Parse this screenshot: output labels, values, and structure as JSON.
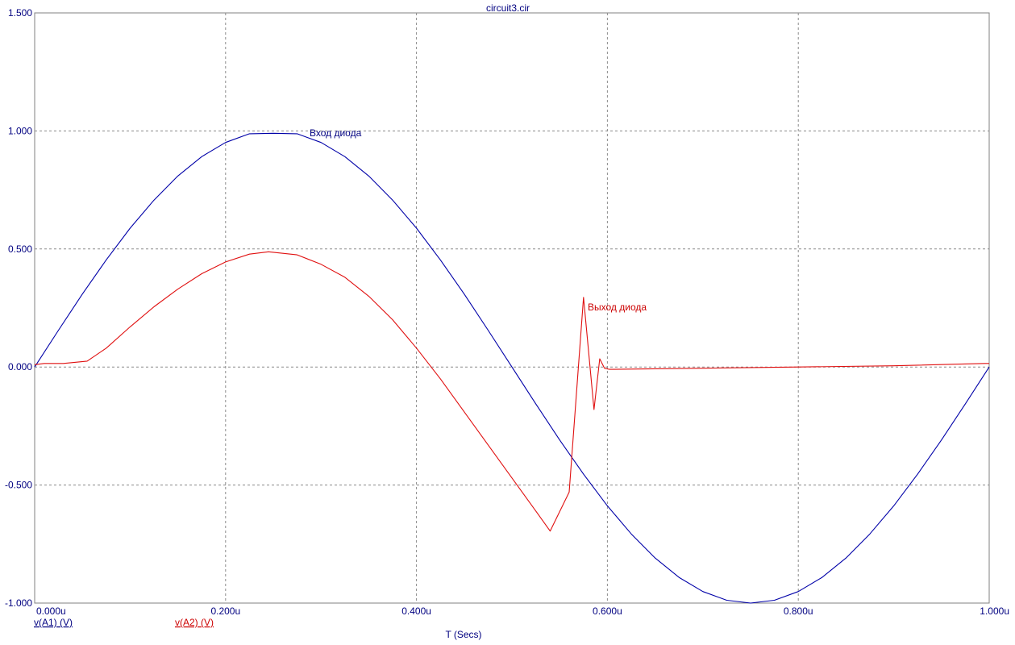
{
  "chart_data": {
    "type": "line",
    "title": "circuit3.cir",
    "xlabel": "T (Secs)",
    "ylabel": "",
    "xlim": [
      0,
      1.0
    ],
    "ylim": [
      -1.0,
      1.5
    ],
    "grid": true,
    "x_ticks": [
      {
        "value": 0.0,
        "label": "0.000u"
      },
      {
        "value": 0.2,
        "label": "0.200u"
      },
      {
        "value": 0.4,
        "label": "0.400u"
      },
      {
        "value": 0.6,
        "label": "0.600u"
      },
      {
        "value": 0.8,
        "label": "0.800u"
      },
      {
        "value": 1.0,
        "label": "1.000u"
      }
    ],
    "y_ticks": [
      {
        "value": -1.0,
        "label": "-1.000"
      },
      {
        "value": -0.5,
        "label": "-0.500"
      },
      {
        "value": 0.0,
        "label": "0.000"
      },
      {
        "value": 0.5,
        "label": "0.500"
      },
      {
        "value": 1.0,
        "label": "1.000"
      },
      {
        "value": 1.5,
        "label": "1.500"
      }
    ],
    "series": [
      {
        "name": "v(A1) (V)",
        "color": "#0000a8",
        "annotation": "Вход диода",
        "x": [
          0.0,
          0.025,
          0.05,
          0.075,
          0.1,
          0.125,
          0.15,
          0.175,
          0.2,
          0.225,
          0.25,
          0.275,
          0.3,
          0.325,
          0.35,
          0.375,
          0.4,
          0.425,
          0.45,
          0.475,
          0.5,
          0.525,
          0.55,
          0.575,
          0.6,
          0.625,
          0.65,
          0.675,
          0.7,
          0.725,
          0.75,
          0.775,
          0.8,
          0.825,
          0.85,
          0.875,
          0.9,
          0.925,
          0.95,
          0.975,
          1.0
        ],
        "y": [
          0.0,
          0.156,
          0.309,
          0.454,
          0.588,
          0.707,
          0.809,
          0.891,
          0.951,
          0.988,
          0.99,
          0.988,
          0.951,
          0.891,
          0.809,
          0.707,
          0.588,
          0.454,
          0.309,
          0.156,
          0.0,
          -0.156,
          -0.309,
          -0.454,
          -0.588,
          -0.707,
          -0.809,
          -0.891,
          -0.951,
          -0.988,
          -1.0,
          -0.988,
          -0.951,
          -0.891,
          -0.809,
          -0.707,
          -0.588,
          -0.454,
          -0.309,
          -0.156,
          0.0
        ]
      },
      {
        "name": "v(A2) (V)",
        "color": "#e01010",
        "annotation": "Выход диода",
        "x": [
          0.0,
          0.01,
          0.03,
          0.055,
          0.075,
          0.1,
          0.125,
          0.15,
          0.175,
          0.2,
          0.225,
          0.245,
          0.275,
          0.3,
          0.325,
          0.35,
          0.375,
          0.4,
          0.425,
          0.45,
          0.475,
          0.5,
          0.525,
          0.54,
          0.56,
          0.575,
          0.586,
          0.592,
          0.597,
          0.602,
          0.7,
          0.8,
          0.9,
          0.995,
          1.0
        ],
        "y": [
          0.01,
          0.015,
          0.015,
          0.025,
          0.08,
          0.17,
          0.255,
          0.33,
          0.395,
          0.445,
          0.478,
          0.488,
          0.475,
          0.435,
          0.38,
          0.3,
          0.2,
          0.08,
          -0.05,
          -0.19,
          -0.33,
          -0.47,
          -0.61,
          -0.695,
          -0.53,
          0.295,
          -0.18,
          0.035,
          -0.005,
          -0.01,
          -0.005,
          0.0,
          0.005,
          0.015,
          0.015
        ]
      }
    ]
  }
}
